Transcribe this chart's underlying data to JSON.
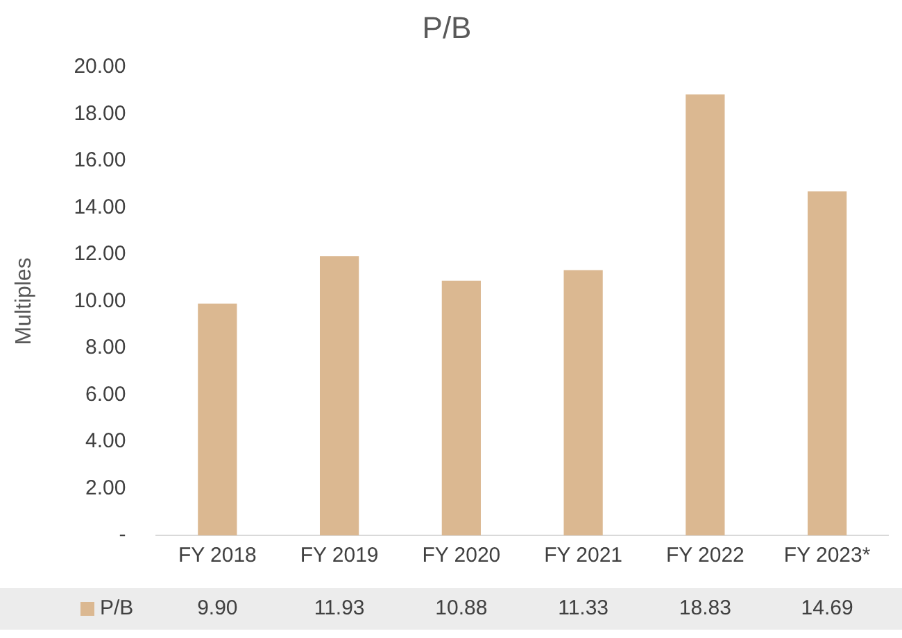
{
  "chart_data": {
    "type": "bar",
    "title": "P/B",
    "ylabel": "Multiples",
    "categories": [
      "FY 2018",
      "FY 2019",
      "FY 2020",
      "FY 2021",
      "FY 2022",
      "FY 2023*"
    ],
    "series": [
      {
        "name": "P/B",
        "color": "#dbb891",
        "values": [
          9.9,
          11.93,
          10.88,
          11.33,
          18.83,
          14.69
        ]
      }
    ],
    "value_labels": [
      "9.90",
      "11.93",
      "10.88",
      "11.33",
      "18.83",
      "14.69"
    ],
    "ylim": [
      0,
      20
    ],
    "yticks": [
      {
        "value": 0,
        "label": "-"
      },
      {
        "value": 2,
        "label": "2.00"
      },
      {
        "value": 4,
        "label": "4.00"
      },
      {
        "value": 6,
        "label": "6.00"
      },
      {
        "value": 8,
        "label": "8.00"
      },
      {
        "value": 10,
        "label": "10.00"
      },
      {
        "value": 12,
        "label": "12.00"
      },
      {
        "value": 14,
        "label": "14.00"
      },
      {
        "value": 16,
        "label": "16.00"
      },
      {
        "value": 18,
        "label": "18.00"
      },
      {
        "value": 20,
        "label": "20.00"
      }
    ],
    "grid": false,
    "legend": "bottom"
  }
}
